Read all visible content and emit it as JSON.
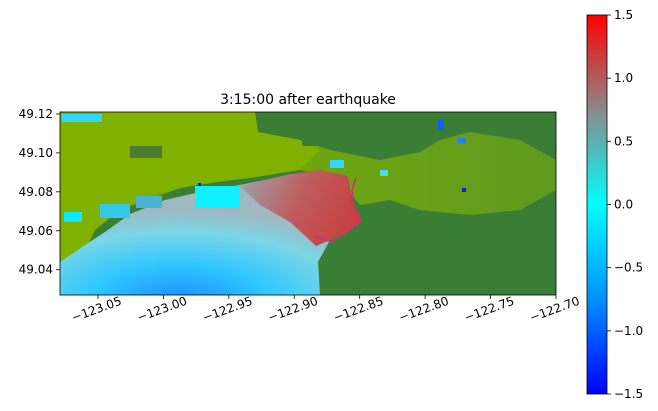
{
  "chart_data": {
    "type": "heatmap",
    "title": "3:15:00 after earthquake",
    "xlabel": "",
    "ylabel": "",
    "xlim": [
      -123.079,
      -122.7
    ],
    "ylim": [
      49.027,
      49.121
    ],
    "x_ticks": [
      {
        "value": -123.05,
        "label": "−123.05"
      },
      {
        "value": -123.0,
        "label": "−123.00"
      },
      {
        "value": -122.95,
        "label": "−122.95"
      },
      {
        "value": -122.9,
        "label": "−122.90"
      },
      {
        "value": -122.85,
        "label": "−122.85"
      },
      {
        "value": -122.8,
        "label": "−122.80"
      },
      {
        "value": -122.75,
        "label": "−122.75"
      },
      {
        "value": -122.7,
        "label": "−122.70"
      }
    ],
    "y_ticks": [
      {
        "value": 49.04,
        "label": "49.04"
      },
      {
        "value": 49.06,
        "label": "49.06"
      },
      {
        "value": 49.08,
        "label": "49.08"
      },
      {
        "value": 49.1,
        "label": "49.10"
      },
      {
        "value": 49.12,
        "label": "49.12"
      }
    ],
    "colorbar": {
      "range": [
        -1.5,
        1.5
      ],
      "ticks": [
        {
          "value": 1.5,
          "label": "1.5"
        },
        {
          "value": 1.0,
          "label": "1.0"
        },
        {
          "value": 0.5,
          "label": "0.5"
        },
        {
          "value": 0.0,
          "label": "0.0"
        },
        {
          "value": -0.5,
          "label": "−0.5"
        },
        {
          "value": -1.0,
          "label": "−1.0"
        },
        {
          "value": -1.5,
          "label": "−1.5"
        }
      ],
      "colors": [
        "#0000ff",
        "#0090ff",
        "#00ffff",
        "#8a8a8a",
        "#ff0000"
      ]
    },
    "colors": {
      "dry_land": "#3a7d34",
      "flooded_land": "#80b000",
      "ocean_deep": "#1a8cff",
      "ocean_mid": "#30d0ff",
      "high_surge": "#c04545"
    }
  }
}
